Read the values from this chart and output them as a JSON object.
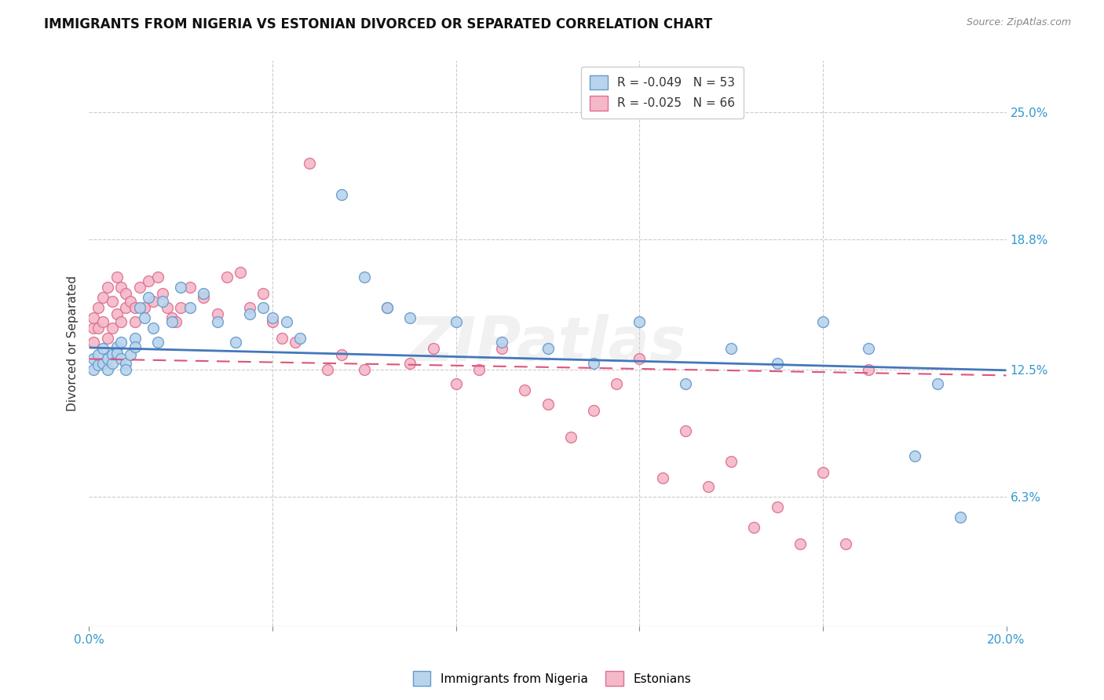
{
  "title": "IMMIGRANTS FROM NIGERIA VS ESTONIAN DIVORCED OR SEPARATED CORRELATION CHART",
  "source": "Source: ZipAtlas.com",
  "ylabel": "Divorced or Separated",
  "ytick_labels": [
    "25.0%",
    "18.8%",
    "12.5%",
    "6.3%"
  ],
  "ytick_values": [
    0.25,
    0.188,
    0.125,
    0.063
  ],
  "xlim": [
    0.0,
    0.2
  ],
  "ylim": [
    0.0,
    0.275
  ],
  "series1_label": "Immigrants from Nigeria",
  "series2_label": "Estonians",
  "series1_color": "#b8d4ed",
  "series2_color": "#f5b8c8",
  "series1_edge_color": "#6699cc",
  "series2_edge_color": "#dd7090",
  "trend1_color": "#4477bb",
  "trend2_color": "#dd5577",
  "legend_r1": "R = -0.049",
  "legend_n1": "N = 53",
  "legend_r2": "R = -0.025",
  "legend_n2": "N = 66",
  "watermark": "ZIPatlas",
  "background_color": "#ffffff",
  "series1_x": [
    0.001,
    0.001,
    0.002,
    0.002,
    0.003,
    0.003,
    0.004,
    0.004,
    0.005,
    0.005,
    0.006,
    0.006,
    0.007,
    0.007,
    0.008,
    0.008,
    0.009,
    0.01,
    0.01,
    0.011,
    0.012,
    0.013,
    0.014,
    0.015,
    0.016,
    0.018,
    0.02,
    0.022,
    0.025,
    0.028,
    0.032,
    0.035,
    0.038,
    0.04,
    0.043,
    0.046,
    0.055,
    0.06,
    0.065,
    0.07,
    0.08,
    0.09,
    0.1,
    0.11,
    0.12,
    0.13,
    0.14,
    0.15,
    0.16,
    0.17,
    0.18,
    0.185,
    0.19
  ],
  "series1_y": [
    0.13,
    0.125,
    0.132,
    0.127,
    0.128,
    0.135,
    0.13,
    0.125,
    0.132,
    0.128,
    0.136,
    0.133,
    0.138,
    0.13,
    0.128,
    0.125,
    0.132,
    0.14,
    0.136,
    0.155,
    0.15,
    0.16,
    0.145,
    0.138,
    0.158,
    0.148,
    0.165,
    0.155,
    0.162,
    0.148,
    0.138,
    0.152,
    0.155,
    0.15,
    0.148,
    0.14,
    0.21,
    0.17,
    0.155,
    0.15,
    0.148,
    0.138,
    0.135,
    0.128,
    0.148,
    0.118,
    0.135,
    0.128,
    0.148,
    0.135,
    0.083,
    0.118,
    0.053
  ],
  "series2_x": [
    0.001,
    0.001,
    0.001,
    0.002,
    0.002,
    0.003,
    0.003,
    0.004,
    0.004,
    0.005,
    0.005,
    0.006,
    0.006,
    0.007,
    0.007,
    0.008,
    0.008,
    0.009,
    0.01,
    0.01,
    0.011,
    0.012,
    0.013,
    0.014,
    0.015,
    0.016,
    0.017,
    0.018,
    0.019,
    0.02,
    0.022,
    0.025,
    0.028,
    0.03,
    0.033,
    0.035,
    0.038,
    0.04,
    0.042,
    0.045,
    0.048,
    0.052,
    0.055,
    0.06,
    0.065,
    0.07,
    0.075,
    0.08,
    0.085,
    0.09,
    0.095,
    0.1,
    0.105,
    0.11,
    0.115,
    0.12,
    0.125,
    0.13,
    0.135,
    0.14,
    0.145,
    0.15,
    0.155,
    0.16,
    0.165,
    0.17
  ],
  "series2_y": [
    0.145,
    0.15,
    0.138,
    0.155,
    0.145,
    0.16,
    0.148,
    0.165,
    0.14,
    0.158,
    0.145,
    0.17,
    0.152,
    0.165,
    0.148,
    0.155,
    0.162,
    0.158,
    0.155,
    0.148,
    0.165,
    0.155,
    0.168,
    0.158,
    0.17,
    0.162,
    0.155,
    0.15,
    0.148,
    0.155,
    0.165,
    0.16,
    0.152,
    0.17,
    0.172,
    0.155,
    0.162,
    0.148,
    0.14,
    0.138,
    0.225,
    0.125,
    0.132,
    0.125,
    0.155,
    0.128,
    0.135,
    0.118,
    0.125,
    0.135,
    0.115,
    0.108,
    0.092,
    0.105,
    0.118,
    0.13,
    0.072,
    0.095,
    0.068,
    0.08,
    0.048,
    0.058,
    0.04,
    0.075,
    0.04,
    0.125
  ]
}
